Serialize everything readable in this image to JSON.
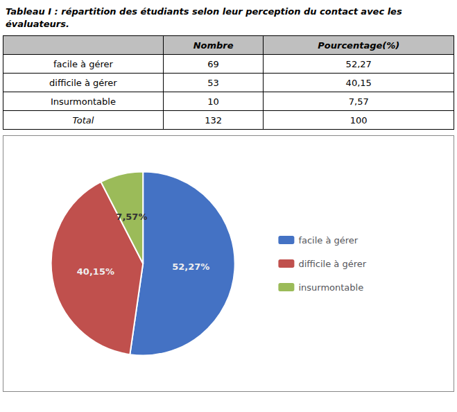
{
  "chart_data": {
    "type": "pie",
    "title": "Tableau I : répartition des étudiants selon leur perception du contact avec les évaluateurs.",
    "categories": [
      "facile à gérer",
      "difficile à gérer",
      "insurmontable"
    ],
    "values": [
      52.27,
      40.15,
      7.57
    ],
    "value_labels": [
      "52,27%",
      "40,15%",
      "7,57%"
    ],
    "colors": [
      "#4472C4",
      "#C0504D",
      "#9BBB59"
    ],
    "data_labels": true,
    "legend": "right",
    "table": {
      "headers": [
        null,
        "Nombre",
        "Pourcentage(%)"
      ],
      "rows": [
        [
          "facile à gérer",
          "69",
          "52,27"
        ],
        [
          "difficile à gérer",
          "53",
          "40,15"
        ],
        [
          "Insurmontable",
          "10",
          "7,57"
        ],
        [
          "Total",
          "132",
          "100"
        ]
      ]
    }
  }
}
